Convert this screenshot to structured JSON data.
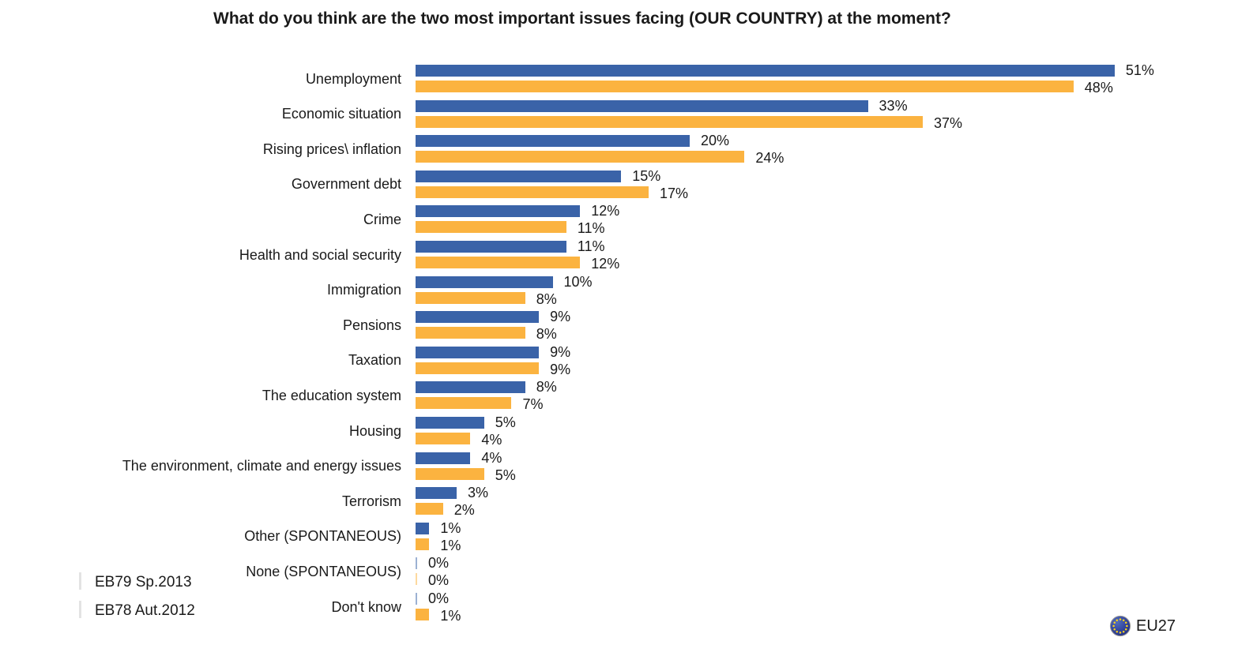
{
  "title": "What do you think are the two most important issues facing (OUR COUNTRY) at the moment?",
  "legend": {
    "series1_label": "EB79 Sp.2013",
    "series2_label": "EB78 Aut.2012"
  },
  "footer": {
    "region_label": "EU27",
    "eu_flag_icon": "eu-flag-icon"
  },
  "colors": {
    "series1": "#3A63A8",
    "series2": "#FBB340",
    "text": "#1a1a1a",
    "eu_flag_blue": "#2B3F91",
    "eu_flag_stars": "#FFD617"
  },
  "chart_data": {
    "type": "bar",
    "orientation": "horizontal",
    "title": "What do you think are the two most important issues facing (OUR COUNTRY) at the moment?",
    "xlabel": "",
    "ylabel": "",
    "xlim": [
      0,
      55
    ],
    "grid": false,
    "legend_position": "bottom-left",
    "value_suffix": "%",
    "categories": [
      "Unemployment",
      "Economic situation",
      "Rising prices\\ inflation",
      "Government debt",
      "Crime",
      "Health and social security",
      "Immigration",
      "Pensions",
      "Taxation",
      "The education system",
      "Housing",
      "The environment, climate and energy issues",
      "Terrorism",
      "Other (SPONTANEOUS)",
      "None (SPONTANEOUS)",
      "Don't know"
    ],
    "series": [
      {
        "name": "EB79 Sp.2013",
        "color": "#3A63A8",
        "values": [
          51,
          33,
          20,
          15,
          12,
          11,
          10,
          9,
          9,
          8,
          5,
          4,
          3,
          1,
          0,
          0
        ]
      },
      {
        "name": "EB78 Aut.2012",
        "color": "#FBB340",
        "values": [
          48,
          37,
          24,
          17,
          11,
          12,
          8,
          8,
          9,
          7,
          4,
          5,
          2,
          1,
          0,
          1
        ]
      }
    ]
  }
}
